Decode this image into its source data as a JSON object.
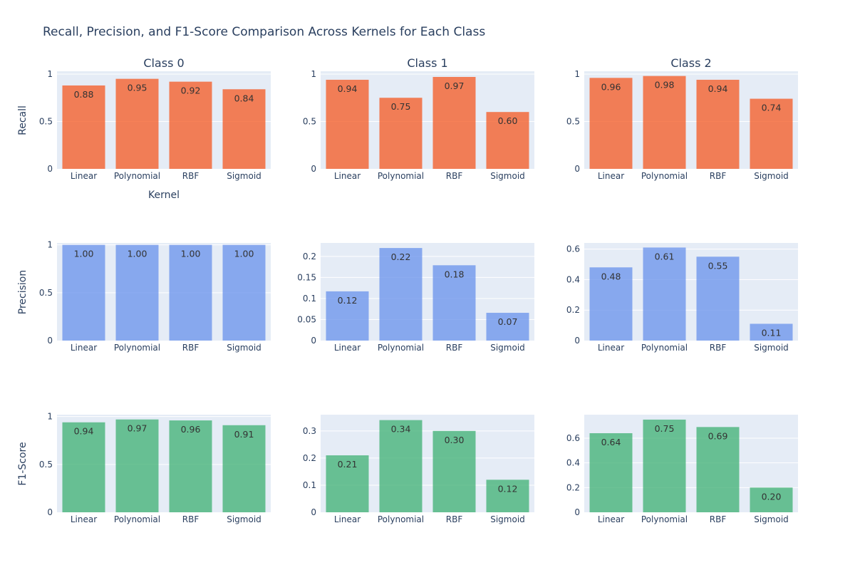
{
  "chart_data": {
    "type": "bar",
    "title": "Recall, Precision, and F1-Score Comparison Across Kernels for Each Class",
    "categories": [
      "Linear",
      "Polynomial",
      "RBF",
      "Sigmoid"
    ],
    "columns": [
      "Class 0",
      "Class 1",
      "Class 2"
    ],
    "rows": [
      "Recall",
      "Precision",
      "F1-Score"
    ],
    "xlabel": "Kernel",
    "colors": {
      "Recall": "#f4622e",
      "Precision": "#6f97ec",
      "F1-Score": "#47b47a"
    },
    "panels": [
      {
        "metric": "Recall",
        "class": "Class 0",
        "values": [
          0.88,
          0.95,
          0.92,
          0.84
        ],
        "labels": [
          "0.88",
          "0.95",
          "0.92",
          "0.84"
        ],
        "yticks": [
          0,
          0.5,
          1
        ],
        "ytick_labels": [
          "0",
          "0.5",
          "1"
        ],
        "ylim": [
          0,
          1.03
        ]
      },
      {
        "metric": "Recall",
        "class": "Class 1",
        "values": [
          0.94,
          0.75,
          0.97,
          0.6
        ],
        "labels": [
          "0.94",
          "0.75",
          "0.97",
          "0.60"
        ],
        "yticks": [
          0,
          0.5,
          1
        ],
        "ytick_labels": [
          "0",
          "0.5",
          "1"
        ],
        "ylim": [
          0,
          1.03
        ]
      },
      {
        "metric": "Recall",
        "class": "Class 2",
        "values": [
          0.96,
          0.98,
          0.94,
          0.74
        ],
        "labels": [
          "0.96",
          "0.98",
          "0.94",
          "0.74"
        ],
        "yticks": [
          0,
          0.5,
          1
        ],
        "ytick_labels": [
          "0",
          "0.5",
          "1"
        ],
        "ylim": [
          0,
          1.03
        ]
      },
      {
        "metric": "Precision",
        "class": "Class 0",
        "values": [
          1.0,
          1.0,
          1.0,
          1.0
        ],
        "labels": [
          "1.00",
          "1.00",
          "1.00",
          "1.00"
        ],
        "yticks": [
          0,
          0.5,
          1
        ],
        "ytick_labels": [
          "0",
          "0.5",
          "1"
        ],
        "ylim": [
          0,
          1.02
        ]
      },
      {
        "metric": "Precision",
        "class": "Class 1",
        "values": [
          0.117,
          0.22,
          0.179,
          0.066
        ],
        "labels": [
          "0.12",
          "0.22",
          "0.18",
          "0.07"
        ],
        "yticks": [
          0,
          0.05,
          0.1,
          0.15,
          0.2
        ],
        "ytick_labels": [
          "0",
          "0.05",
          "0.1",
          "0.15",
          "0.2"
        ],
        "ylim": [
          0,
          0.232
        ]
      },
      {
        "metric": "Precision",
        "class": "Class 2",
        "values": [
          0.48,
          0.61,
          0.55,
          0.11
        ],
        "labels": [
          "0.48",
          "0.61",
          "0.55",
          "0.11"
        ],
        "yticks": [
          0,
          0.2,
          0.4,
          0.6
        ],
        "ytick_labels": [
          "0",
          "0.2",
          "0.4",
          "0.6"
        ],
        "ylim": [
          0,
          0.64
        ]
      },
      {
        "metric": "F1-Score",
        "class": "Class 0",
        "values": [
          0.94,
          0.97,
          0.96,
          0.91
        ],
        "labels": [
          "0.94",
          "0.97",
          "0.96",
          "0.91"
        ],
        "yticks": [
          0,
          0.5,
          1
        ],
        "ytick_labels": [
          "0",
          "0.5",
          "1"
        ],
        "ylim": [
          0,
          1.02
        ]
      },
      {
        "metric": "F1-Score",
        "class": "Class 1",
        "values": [
          0.21,
          0.34,
          0.3,
          0.12
        ],
        "labels": [
          "0.21",
          "0.34",
          "0.30",
          "0.12"
        ],
        "yticks": [
          0,
          0.1,
          0.2,
          0.3
        ],
        "ytick_labels": [
          "0",
          "0.1",
          "0.2",
          "0.3"
        ],
        "ylim": [
          0,
          0.36
        ]
      },
      {
        "metric": "F1-Score",
        "class": "Class 2",
        "values": [
          0.64,
          0.75,
          0.69,
          0.2
        ],
        "labels": [
          "0.64",
          "0.75",
          "0.69",
          "0.20"
        ],
        "yticks": [
          0,
          0.2,
          0.4,
          0.6
        ],
        "ytick_labels": [
          "0",
          "0.2",
          "0.4",
          "0.6"
        ],
        "ylim": [
          0,
          0.79
        ]
      }
    ]
  }
}
